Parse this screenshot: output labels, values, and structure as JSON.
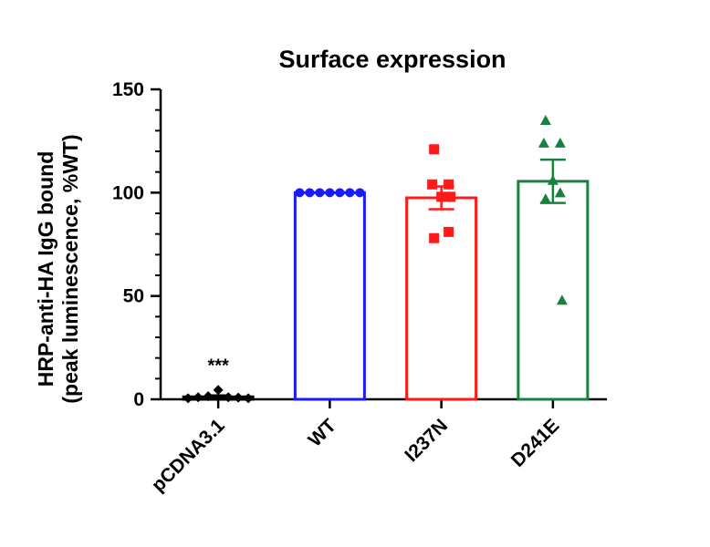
{
  "chart_data": {
    "type": "bar",
    "title": "Surface expression",
    "ylabel_line1": "HRP-anti-HA IgG bound",
    "ylabel_line2": "(peak luminescence, %WT)",
    "ylim": [
      0,
      150
    ],
    "yticks": [
      0,
      50,
      100,
      150
    ],
    "grid": false,
    "categories": [
      "pCDNA3.1",
      "WT",
      "I237N",
      "D241E"
    ],
    "series": [
      {
        "values": [
          1.2,
          100,
          97.5,
          105.5
        ],
        "sem": [
          0.7,
          0,
          5.5,
          10.5
        ],
        "colors": [
          "#000000",
          "#1a1aff",
          "#ff1a1a",
          "#1a8040"
        ],
        "markers": [
          "diamond",
          "circle",
          "square",
          "triangle"
        ],
        "points": [
          [
            0.5,
            1,
            1.5,
            4.5,
            1,
            0.8,
            0.5
          ],
          [
            100,
            100,
            100,
            100,
            100,
            100,
            100
          ],
          [
            121,
            104,
            104,
            98,
            81,
            78,
            98
          ],
          [
            135,
            124,
            124,
            106,
            100,
            97,
            48
          ]
        ]
      }
    ],
    "annotations": [
      {
        "category": "pCDNA3.1",
        "text": "***"
      }
    ]
  }
}
